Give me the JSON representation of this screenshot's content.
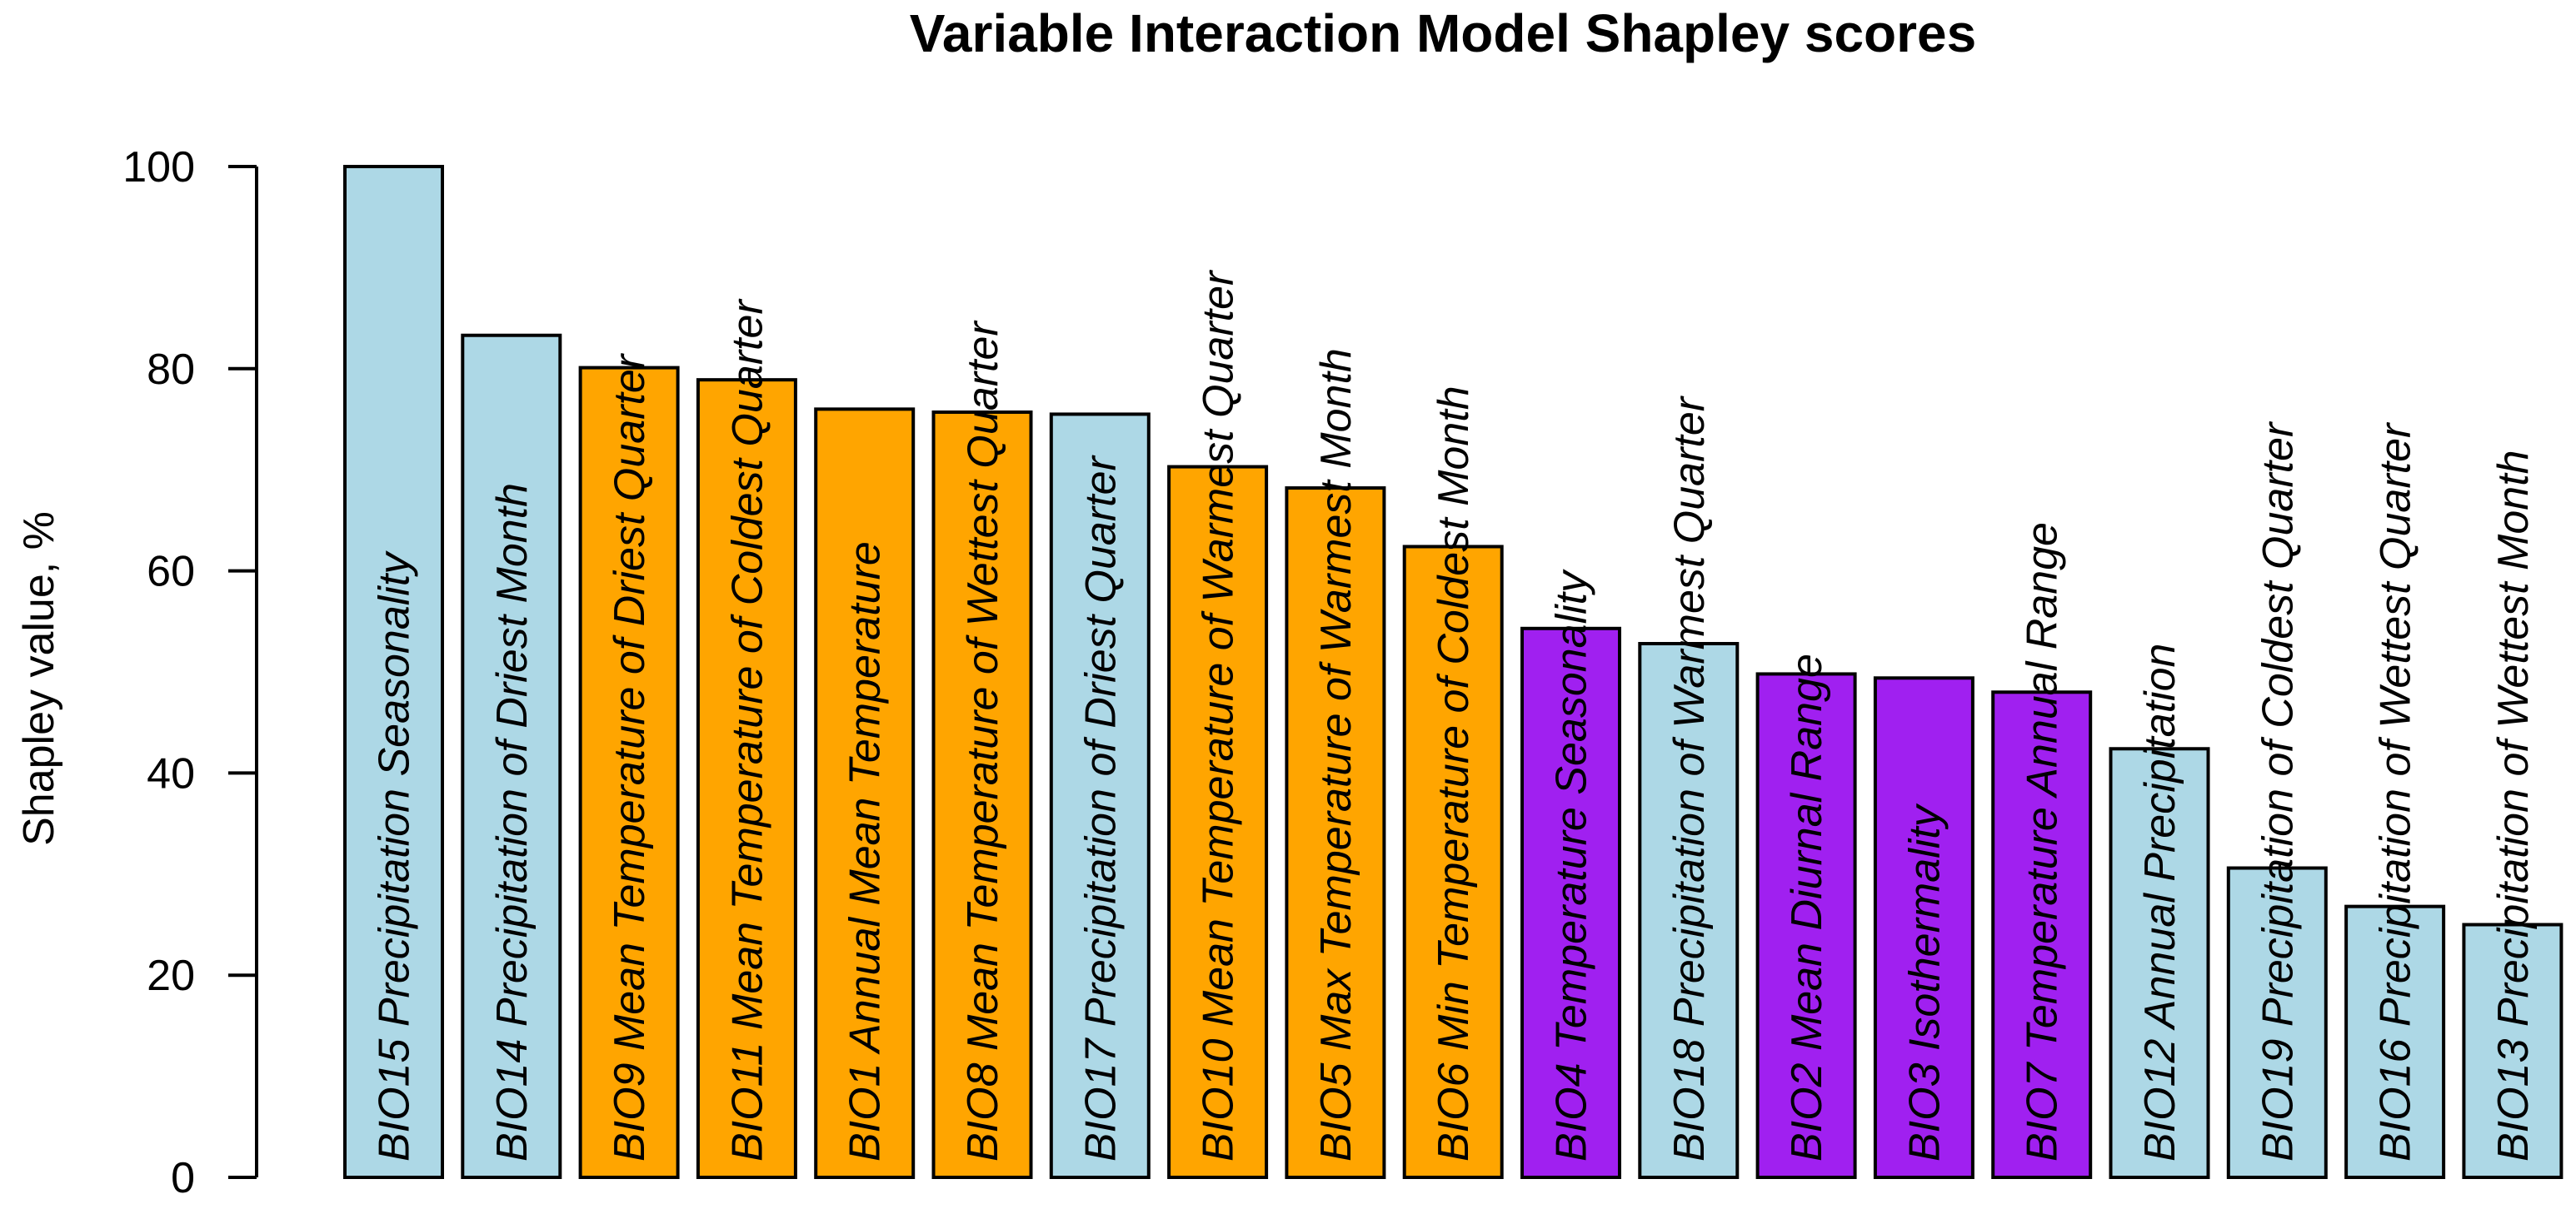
{
  "chart_data": {
    "type": "bar",
    "title": "Variable Interaction Model Shapley scores",
    "xlabel": "",
    "ylabel": "Shapley value, %",
    "ylim": [
      0,
      100
    ],
    "yticks": [
      0,
      20,
      40,
      60,
      80,
      100
    ],
    "grid": false,
    "legend": "none",
    "colors": {
      "precipitation": "#add8e6",
      "temperature": "#ffa500",
      "variability": "#a020f0"
    },
    "bars": [
      {
        "label": "BIO15 Precipitation Seasonality",
        "value": 100.0,
        "group": "precipitation"
      },
      {
        "label": "BIO14 Precipitation of Driest Month",
        "value": 83.3,
        "group": "precipitation"
      },
      {
        "label": "BIO9 Mean Temperature of Driest Quarter",
        "value": 80.1,
        "group": "temperature"
      },
      {
        "label": "BIO11 Mean Temperature of Coldest Quarter",
        "value": 78.9,
        "group": "temperature"
      },
      {
        "label": "BIO1 Annual Mean Temperature",
        "value": 76.0,
        "group": "temperature"
      },
      {
        "label": "BIO8 Mean Temperature of Wettest Quarter",
        "value": 75.7,
        "group": "temperature"
      },
      {
        "label": "BIO17 Precipitation of Driest Quarter",
        "value": 75.5,
        "group": "precipitation"
      },
      {
        "label": "BIO10 Mean Temperature of Warmest Quarter",
        "value": 70.3,
        "group": "temperature"
      },
      {
        "label": "BIO5 Max Temperature of Warmest Month",
        "value": 68.2,
        "group": "temperature"
      },
      {
        "label": "BIO6 Min Temperature of Coldest Month",
        "value": 62.4,
        "group": "temperature"
      },
      {
        "label": "BIO4 Temperature Seasonality",
        "value": 54.3,
        "group": "variability"
      },
      {
        "label": "BIO18 Precipitation of Warmest Quarter",
        "value": 52.8,
        "group": "precipitation"
      },
      {
        "label": "BIO2 Mean Diurnal Range",
        "value": 49.8,
        "group": "variability"
      },
      {
        "label": "BIO3 Isothermality",
        "value": 49.4,
        "group": "variability"
      },
      {
        "label": "BIO7 Temperature Annual Range",
        "value": 48.0,
        "group": "variability"
      },
      {
        "label": "BIO12 Annual Precipitation",
        "value": 42.4,
        "group": "precipitation"
      },
      {
        "label": "BIO19 Precipitation of Coldest Quarter",
        "value": 30.6,
        "group": "precipitation"
      },
      {
        "label": "BIO16 Precipitation of Wettest Quarter",
        "value": 26.8,
        "group": "precipitation"
      },
      {
        "label": "BIO13 Precipitation of Wettest Month",
        "value": 25.0,
        "group": "precipitation"
      }
    ]
  }
}
